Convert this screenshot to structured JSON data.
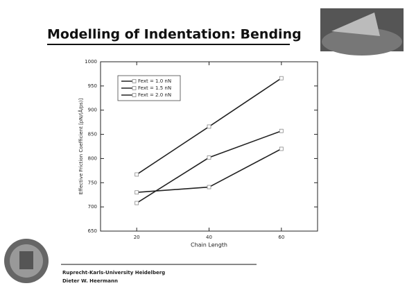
{
  "slide": {
    "title": "Modelling of Indentation: Bending",
    "footer_lines": [
      "Ruprecht-Karls-University Heidelberg",
      "Dieter W. Heermann"
    ]
  },
  "chart_data": {
    "type": "line",
    "x_label": "Chain Length",
    "y_label": "Effective Friction Coefficient [pN/(Å/ps)]",
    "x": [
      20,
      40,
      60
    ],
    "series": [
      {
        "name": "Fext = 1.0 nN",
        "color": "#222222",
        "values": [
          730,
          741,
          820
        ]
      },
      {
        "name": "Fext = 1.5 nN",
        "color": "#222222",
        "values": [
          708,
          802,
          857
        ]
      },
      {
        "name": "Fext = 2.0 nN",
        "color": "#222222",
        "values": [
          767,
          866,
          966
        ]
      }
    ],
    "xlim": [
      10,
      70
    ],
    "xticks": [
      20,
      40,
      60
    ],
    "ylim": [
      650,
      1000
    ],
    "yticks": [
      650,
      700,
      750,
      800,
      850,
      900,
      950,
      1000
    ],
    "legend": "upper left"
  }
}
